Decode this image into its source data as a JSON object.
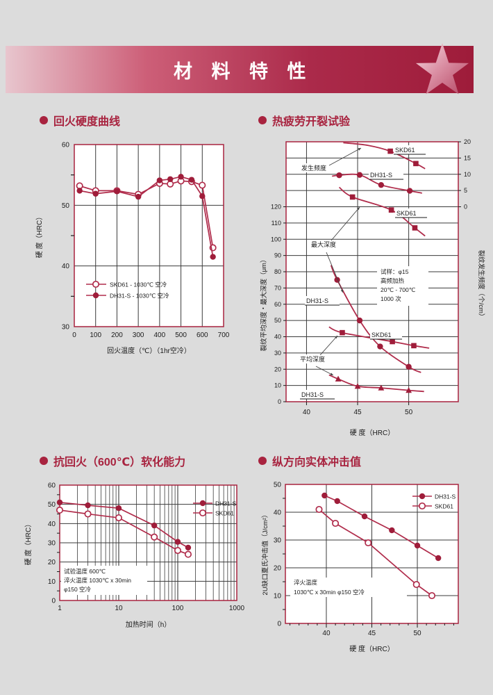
{
  "page": {
    "background": "#dcdcdc"
  },
  "colors": {
    "accent": "#a8233f",
    "curve": "#b02c4b",
    "marker": "#9f1d3a",
    "grid": "#3a3a3a",
    "text": "#1a1a1a",
    "plot_bg": "#ffffff",
    "banner_from": "#e8c6ce",
    "banner_to": "#9e1c3a",
    "star_from": "#f5dde2",
    "star_to": "#b44562"
  },
  "header": {
    "title": "材 料 特 性"
  },
  "sections": [
    {
      "title": "回火硬度曲线"
    },
    {
      "title": "热疲劳开裂试验"
    },
    {
      "title": "抗回火（600℃）软化能力"
    },
    {
      "title": "纵方向实体冲击值"
    }
  ],
  "chart_data": [
    {
      "id": "tempering-hardness",
      "type": "line",
      "title": "回火硬度曲线",
      "xlabel": "回火温度（℃）（1hr空冷）",
      "ylabel": "硬 度（HRC）",
      "xlim": [
        0,
        700
      ],
      "ylim": [
        30,
        60
      ],
      "xticks": [
        0,
        100,
        200,
        300,
        400,
        500,
        600,
        700
      ],
      "yticks": [
        30,
        40,
        50,
        60
      ],
      "yticks_minor": [
        35,
        45,
        55
      ],
      "grid_x": [
        100,
        200,
        300,
        400,
        500,
        600
      ],
      "grid_y": [
        40,
        50
      ],
      "legend_position": "inside-bottom-left",
      "series": [
        {
          "name": "SKD61 - 1030℃ 空冷",
          "marker": "circle-open",
          "x": [
            25,
            100,
            200,
            300,
            400,
            450,
            500,
            550,
            600,
            650
          ],
          "y": [
            53.2,
            52.4,
            52.4,
            51.8,
            53.6,
            53.5,
            54.0,
            53.9,
            53.3,
            43.0
          ]
        },
        {
          "name": "DH31-S - 1030℃ 空冷",
          "marker": "circle-filled",
          "x": [
            25,
            100,
            200,
            300,
            400,
            450,
            500,
            550,
            600,
            650
          ],
          "y": [
            52.4,
            51.9,
            52.3,
            51.4,
            54.1,
            54.3,
            54.7,
            54.2,
            51.5,
            41.5
          ]
        }
      ]
    },
    {
      "id": "thermal-fatigue-cracking",
      "type": "dual-axis-line",
      "title": "热疲劳开裂试验",
      "xlabel": "硬 度（HRC）",
      "ylabel_left": "裂纹平均深度・最大深度（μm）",
      "ylabel_right": "裂纹发生频度（个/cm）",
      "xlim": [
        38,
        54.85
      ],
      "xticks": [
        40,
        45,
        50
      ],
      "left_axis": {
        "range": [
          0,
          120
        ],
        "step": 10,
        "unit": "μm"
      },
      "right_axis": {
        "range": [
          0,
          20
        ],
        "step": 5,
        "unit": "个/cm"
      },
      "group_labels": {
        "frequency": "发生频度",
        "max_depth": "最大深度",
        "avg_depth": "平均深度"
      },
      "annotation": [
        "试样：φ15",
        "高频加热",
        "20℃ - 700℃",
        "1000 次"
      ],
      "series": [
        {
          "name": "SKD61",
          "group": "frequency",
          "axis": "right",
          "marker": "square-filled",
          "points": [
            [
              48.2,
              17.1
            ],
            [
              50.7,
              13.3
            ]
          ],
          "line": [
            [
              43.6,
              19.7
            ],
            [
              46.0,
              18.9
            ],
            [
              48.2,
              17.1
            ],
            [
              50.7,
              13.3
            ],
            [
              51.6,
              11.7
            ]
          ]
        },
        {
          "name": "DH31-S",
          "group": "frequency",
          "axis": "right",
          "marker": "circle-filled",
          "points": [
            [
              43.2,
              9.7
            ],
            [
              45.2,
              9.8
            ],
            [
              47.3,
              6.7
            ],
            [
              50.1,
              4.9
            ]
          ],
          "line": [
            [
              42.5,
              9.4
            ],
            [
              43.2,
              9.7
            ],
            [
              45.2,
              9.8
            ],
            [
              47.3,
              6.7
            ],
            [
              50.1,
              4.9
            ],
            [
              51.3,
              4.2
            ]
          ]
        },
        {
          "name": "SKD61",
          "group": "max_depth",
          "axis": "left",
          "marker": "square-filled",
          "points": [
            [
              44.5,
              126
            ],
            [
              48.3,
              118
            ],
            [
              50.6,
              107
            ]
          ],
          "line": [
            [
              43.2,
              132
            ],
            [
              44.5,
              126
            ],
            [
              48.3,
              118
            ],
            [
              50.6,
              107
            ],
            [
              51.6,
              102
            ]
          ]
        },
        {
          "name": "DH31-S",
          "group": "max_depth",
          "axis": "left",
          "marker": "circle-filled",
          "points": [
            [
              43.0,
              75
            ],
            [
              45.2,
              50
            ],
            [
              47.2,
              34
            ],
            [
              50.0,
              21.5
            ]
          ],
          "line": [
            [
              42.4,
              84
            ],
            [
              43.0,
              75
            ],
            [
              45.2,
              50
            ],
            [
              47.2,
              34
            ],
            [
              50.0,
              21.5
            ],
            [
              51.2,
              18
            ]
          ]
        },
        {
          "name": "SKD61",
          "group": "avg_depth",
          "axis": "left",
          "marker": "square-filled",
          "points": [
            [
              43.5,
              42.5
            ],
            [
              48.4,
              37
            ],
            [
              50.5,
              34.5
            ]
          ],
          "line": [
            [
              42.2,
              46
            ],
            [
              43.5,
              42.5
            ],
            [
              48.4,
              37
            ],
            [
              50.5,
              34.5
            ],
            [
              52.0,
              33
            ]
          ]
        },
        {
          "name": "DH31-S",
          "group": "avg_depth",
          "axis": "left",
          "marker": "triangle-filled",
          "points": [
            [
              43.1,
              14
            ],
            [
              45.0,
              9.5
            ],
            [
              47.3,
              8.5
            ],
            [
              50.0,
              7
            ]
          ],
          "line": [
            [
              42.2,
              16.5
            ],
            [
              43.1,
              14
            ],
            [
              45.0,
              9.5
            ],
            [
              47.3,
              8.5
            ],
            [
              50.0,
              7
            ],
            [
              51.5,
              6.3
            ]
          ]
        }
      ]
    },
    {
      "id": "softening-resistance-600C",
      "type": "line-logx",
      "title": "抗回火（600℃）软化能力",
      "xlabel": "加热时间（h）",
      "ylabel": "硬 度（HRC）",
      "xlim": [
        1,
        1000
      ],
      "xticks": [
        1,
        10,
        100,
        1000
      ],
      "ylim": [
        0,
        60
      ],
      "yticks": [
        0,
        10,
        20,
        30,
        40,
        50,
        60
      ],
      "annotation": [
        "试验温度 600℃",
        "淬火温度 1030℃ x 30min",
        "φ150 空冷"
      ],
      "legend_position": "inside-top-right",
      "series": [
        {
          "name": "DH31-S",
          "marker": "circle-filled",
          "x": [
            1,
            3,
            10,
            40,
            100,
            150
          ],
          "y": [
            51,
            49.5,
            48,
            39,
            30.5,
            27.5
          ]
        },
        {
          "name": "SKD61",
          "marker": "circle-open",
          "x": [
            1,
            3,
            10,
            40,
            100,
            150
          ],
          "y": [
            47,
            45,
            43,
            33,
            26,
            24
          ]
        }
      ]
    },
    {
      "id": "longitudinal-impact-value",
      "type": "line",
      "title": "纵方向实体冲击值",
      "xlabel": "硬 度（HRC）",
      "ylabel": "2U缺口夏氏冲击值（J/cm²）",
      "xlim": [
        35.5,
        54.5
      ],
      "xticks": [
        40,
        45,
        50
      ],
      "ylim": [
        0,
        50
      ],
      "yticks": [
        0,
        10,
        20,
        30,
        40,
        50
      ],
      "annotation": [
        "淬火温度",
        "1030℃ x 30min φ150 空冷"
      ],
      "legend_position": "inside-top-right",
      "series": [
        {
          "name": "DH31-S",
          "marker": "circle-filled",
          "x": [
            39.8,
            41.2,
            44.2,
            47.2,
            50.0,
            52.3
          ],
          "y": [
            46,
            44,
            38.5,
            33.5,
            28,
            23.5
          ]
        },
        {
          "name": "SKD61",
          "marker": "circle-open",
          "x": [
            39.2,
            41.0,
            44.6,
            49.9,
            51.6
          ],
          "y": [
            41,
            36,
            29,
            14,
            10
          ]
        }
      ]
    }
  ]
}
